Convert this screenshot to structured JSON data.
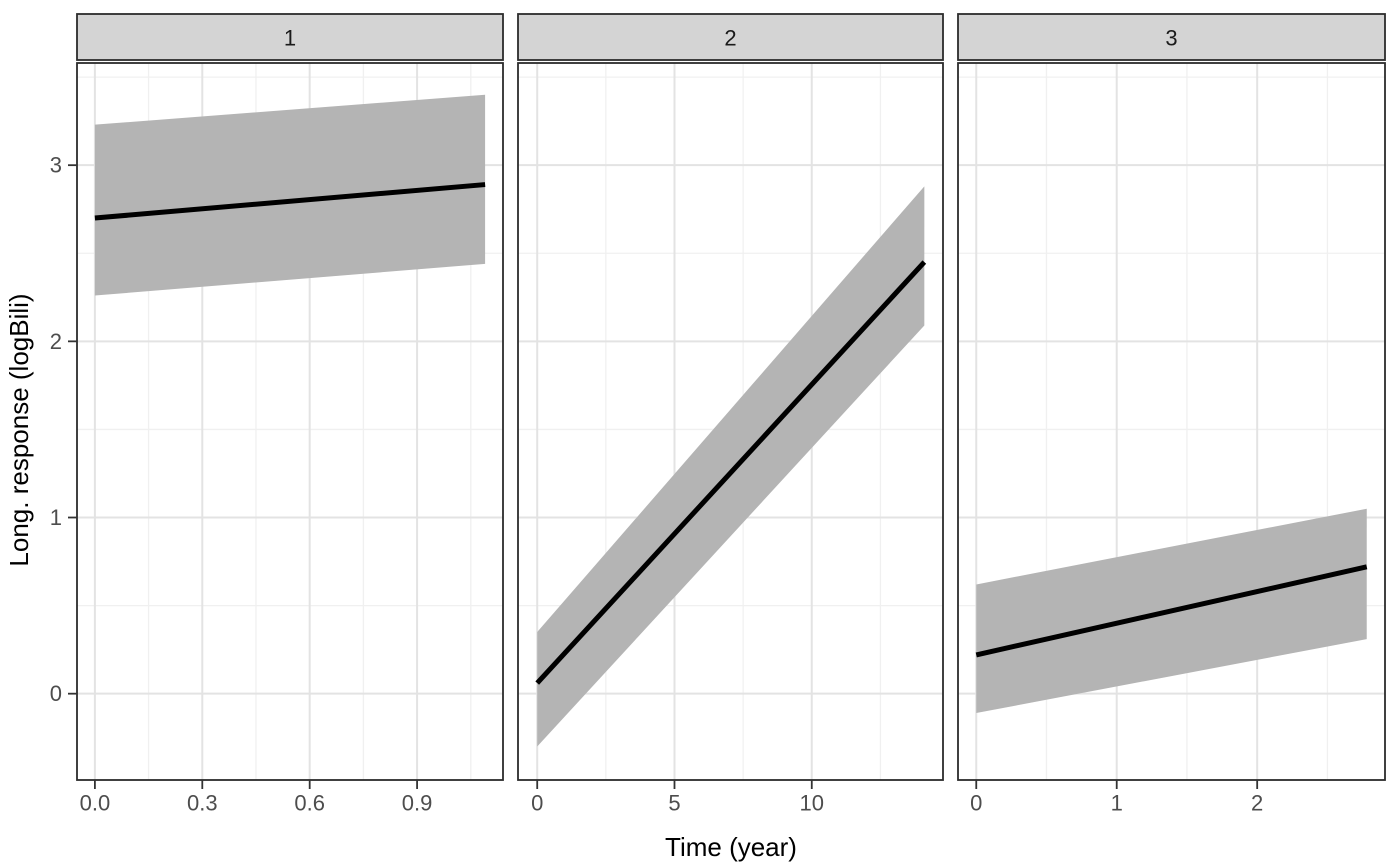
{
  "chart_data": {
    "type": "line",
    "title": "",
    "xlabel": "Time (year)",
    "ylabel": "Long. response (logBili)",
    "grid": true,
    "legend": "none",
    "facet_labels": [
      "1",
      "2",
      "3"
    ],
    "y_ticks": [
      0,
      1,
      2,
      3
    ],
    "y_tick_labels": [
      "0",
      "1",
      "2",
      "3"
    ],
    "ylim": [
      -0.49,
      3.58
    ],
    "facets": [
      {
        "label": "1",
        "xlim": [
          -0.05,
          1.14
        ],
        "x_ticks": [
          0.0,
          0.3,
          0.6,
          0.9
        ],
        "x_tick_labels": [
          "0.0",
          "0.3",
          "0.6",
          "0.9"
        ],
        "line": {
          "x": [
            0,
            1.09
          ],
          "y": [
            2.7,
            2.89
          ]
        },
        "ribbon": {
          "x": [
            0,
            1.09
          ],
          "lower": [
            2.26,
            2.44
          ],
          "upper": [
            3.23,
            3.4
          ]
        }
      },
      {
        "label": "2",
        "xlim": [
          -0.7,
          14.78
        ],
        "x_ticks": [
          0,
          5,
          10
        ],
        "x_tick_labels": [
          "0",
          "5",
          "10"
        ],
        "line": {
          "x": [
            0,
            14.1
          ],
          "y": [
            0.06,
            2.45
          ]
        },
        "ribbon": {
          "x": [
            0,
            14.1
          ],
          "lower": [
            -0.3,
            2.09
          ],
          "upper": [
            0.35,
            2.88
          ]
        }
      },
      {
        "label": "3",
        "xlim": [
          -0.13,
          2.91
        ],
        "x_ticks": [
          0,
          1,
          2
        ],
        "x_tick_labels": [
          "0",
          "1",
          "2"
        ],
        "line": {
          "x": [
            0,
            2.78
          ],
          "y": [
            0.22,
            0.72
          ]
        },
        "ribbon": {
          "x": [
            0,
            2.78
          ],
          "lower": [
            -0.11,
            0.31
          ],
          "upper": [
            0.62,
            1.05
          ]
        }
      }
    ]
  },
  "style": {
    "ribbon_color": "#b4b4b4",
    "line_color": "#000000",
    "strip_fill": "#d4d4d4",
    "strip_text_color": "#1a1a1a",
    "panel_border_color": "#2b2b2b",
    "panel_fill": "#ffffff",
    "grid_major_color": "#e3e3e3",
    "grid_minor_color": "#f0f0f0",
    "tick_mark_color": "#333333",
    "tick_label_color": "#4d4d4d",
    "axis_title_color": "#000000"
  }
}
